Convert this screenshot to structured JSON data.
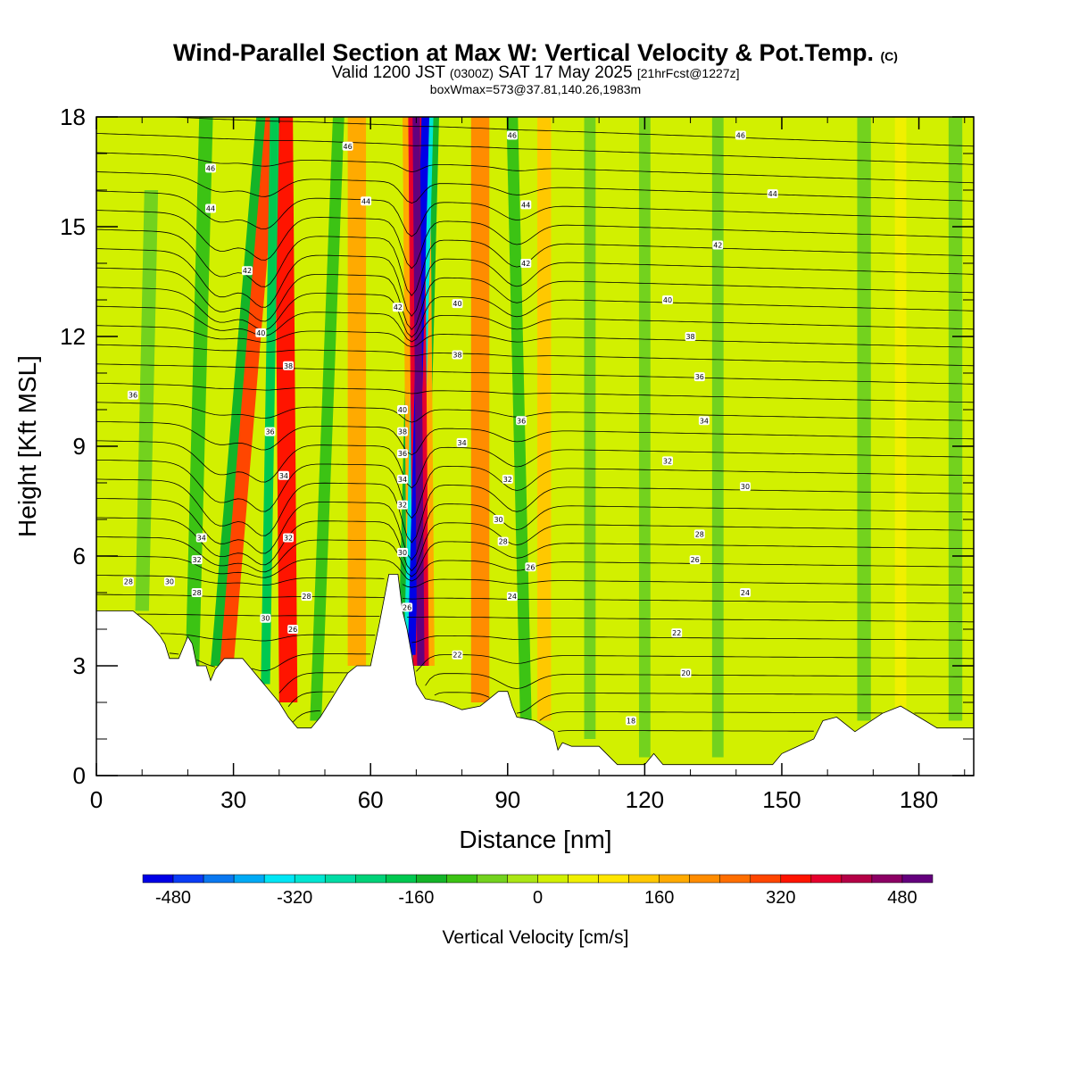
{
  "title": {
    "main": "Wind-Parallel Section at Max W: Vertical Velocity & Pot.Temp.",
    "copyright": "(C)",
    "valid_prefix": "Valid 1200 JST",
    "valid_utc": "(0300Z)",
    "valid_date": "SAT 17 May 2025",
    "forecast": "[21hrFcst@1227z]",
    "box": "boxWmax=573@37.81,140.26,1983m"
  },
  "chart_data": {
    "type": "heatmap",
    "xlabel": "Distance [nm]",
    "ylabel": "Height [Kft MSL]",
    "xlim": [
      0,
      192
    ],
    "ylim": [
      0,
      18
    ],
    "xticks": [
      0,
      30,
      60,
      90,
      120,
      150,
      180
    ],
    "yticks": [
      0,
      3,
      6,
      9,
      12,
      15,
      18
    ],
    "colorbar": {
      "label": "Vertical Velocity [cm/s]",
      "tick_values": [
        -480,
        -320,
        -160,
        0,
        160,
        320,
        480
      ],
      "tick_labels": [
        "-480",
        "-320",
        "-160",
        "0",
        "160",
        "320",
        "480"
      ],
      "bins": [
        -520,
        -480,
        -440,
        -400,
        -360,
        -320,
        -280,
        -240,
        -200,
        -160,
        -120,
        -80,
        -40,
        0,
        40,
        80,
        120,
        160,
        200,
        240,
        280,
        320,
        360,
        400,
        440,
        480,
        520
      ],
      "colors": [
        "#0000e6",
        "#0a3cf5",
        "#0a78f0",
        "#00aaf5",
        "#00e6f5",
        "#00e6d2",
        "#00dca5",
        "#00d278",
        "#00c850",
        "#14b428",
        "#3cc314",
        "#73d21e",
        "#aae614",
        "#d2f000",
        "#f0f000",
        "#ffe600",
        "#ffc800",
        "#ffaa00",
        "#ff8c00",
        "#ff6e00",
        "#ff4600",
        "#ff1400",
        "#e6002d",
        "#b40046",
        "#8c0064",
        "#64007d"
      ]
    },
    "terrain_kft": [
      [
        0,
        4.5
      ],
      [
        8,
        4.5
      ],
      [
        10,
        4.3
      ],
      [
        12,
        4.1
      ],
      [
        14,
        3.8
      ],
      [
        15,
        3.6
      ],
      [
        16,
        3.2
      ],
      [
        18,
        3.2
      ],
      [
        19,
        3.5
      ],
      [
        20,
        3.8
      ],
      [
        21,
        3.6
      ],
      [
        22,
        3.0
      ],
      [
        24,
        3.0
      ],
      [
        25,
        2.6
      ],
      [
        26,
        2.9
      ],
      [
        28,
        3.2
      ],
      [
        32,
        3.2
      ],
      [
        34,
        2.9
      ],
      [
        36,
        2.6
      ],
      [
        38,
        2.3
      ],
      [
        40,
        2.0
      ],
      [
        42,
        1.6
      ],
      [
        44,
        1.3
      ],
      [
        47,
        1.3
      ],
      [
        49,
        1.6
      ],
      [
        51,
        2.0
      ],
      [
        53,
        2.4
      ],
      [
        55,
        2.8
      ],
      [
        57,
        3.0
      ],
      [
        60,
        3.0
      ],
      [
        62,
        4.2
      ],
      [
        64,
        5.5
      ],
      [
        66,
        5.5
      ],
      [
        67,
        4.5
      ],
      [
        68,
        4.0
      ],
      [
        69,
        3.3
      ],
      [
        70,
        2.5
      ],
      [
        72,
        2.1
      ],
      [
        76,
        2.0
      ],
      [
        80,
        1.8
      ],
      [
        84,
        1.9
      ],
      [
        86,
        2.1
      ],
      [
        88,
        2.3
      ],
      [
        90,
        2.3
      ],
      [
        91,
        1.9
      ],
      [
        92,
        1.6
      ],
      [
        96,
        1.5
      ],
      [
        100,
        1.2
      ],
      [
        101,
        0.7
      ],
      [
        102,
        0.9
      ],
      [
        104,
        0.8
      ],
      [
        110,
        0.8
      ],
      [
        114,
        0.3
      ],
      [
        120,
        0.3
      ],
      [
        122,
        0.6
      ],
      [
        124,
        0.3
      ],
      [
        148,
        0.3
      ],
      [
        150,
        0.6
      ],
      [
        157,
        1.0
      ],
      [
        159,
        1.5
      ],
      [
        162,
        1.6
      ],
      [
        164,
        1.4
      ],
      [
        166,
        1.2
      ],
      [
        172,
        1.7
      ],
      [
        176,
        1.9
      ],
      [
        180,
        1.6
      ],
      [
        184,
        1.3
      ],
      [
        190,
        1.3
      ],
      [
        192,
        1.3
      ]
    ],
    "w_features": [
      {
        "x_top": 72,
        "x_bottom": 69,
        "y_bottom": 3.3,
        "y_top": 18,
        "w": -520,
        "width": 1.7
      },
      {
        "x_top": 72,
        "x_bottom": 69,
        "y_bottom": 3.0,
        "y_top": 18,
        "w": -320,
        "width": 3.5
      },
      {
        "x_top": 72,
        "x_bottom": 69,
        "y_bottom": 3.0,
        "y_top": 18,
        "w": -140,
        "width": 6
      },
      {
        "x_top": 70,
        "x_bottom": 71,
        "y_bottom": 3.0,
        "y_top": 18,
        "w": 520,
        "width": 1.6
      },
      {
        "x_top": 70,
        "x_bottom": 71,
        "y_bottom": 3.0,
        "y_top": 18,
        "w": 360,
        "width": 3.5
      },
      {
        "x_top": 70,
        "x_bottom": 71,
        "y_bottom": 3.0,
        "y_top": 18,
        "w": 180,
        "width": 6
      },
      {
        "x_top": 38,
        "x_bottom": 28,
        "y_bottom": 3.0,
        "y_top": 18,
        "w": 280,
        "width": 4
      },
      {
        "x_top": 36,
        "x_bottom": 26,
        "y_bottom": 3.0,
        "y_top": 18,
        "w": -160,
        "width": 2
      },
      {
        "x_top": 41,
        "x_bottom": 42,
        "y_bottom": 2.0,
        "y_top": 18,
        "w": 320,
        "width": 4
      },
      {
        "x_top": 39,
        "x_bottom": 37,
        "y_bottom": 2.5,
        "y_top": 18,
        "w": -180,
        "width": 2
      },
      {
        "x_top": 57,
        "x_bottom": 57,
        "y_bottom": 3.0,
        "y_top": 18,
        "w": 180,
        "width": 4
      },
      {
        "x_top": 53,
        "x_bottom": 48,
        "y_bottom": 1.5,
        "y_top": 18,
        "w": -120,
        "width": 2.5
      },
      {
        "x_top": 84,
        "x_bottom": 84,
        "y_bottom": 2.0,
        "y_top": 18,
        "w": 200,
        "width": 4
      },
      {
        "x_top": 91,
        "x_bottom": 94,
        "y_bottom": 1.5,
        "y_top": 18,
        "w": -120,
        "width": 2.5
      },
      {
        "x_top": 98,
        "x_bottom": 98,
        "y_bottom": 1.5,
        "y_top": 18,
        "w": 120,
        "width": 3
      },
      {
        "x_top": 24,
        "x_bottom": 21,
        "y_bottom": 3.0,
        "y_top": 18,
        "w": -100,
        "width": 3
      },
      {
        "x_top": 12,
        "x_bottom": 10,
        "y_bottom": 4.5,
        "y_top": 16,
        "w": -80,
        "width": 3
      },
      {
        "x_top": 108,
        "x_bottom": 108,
        "y_bottom": 1.0,
        "y_top": 18,
        "w": -60,
        "width": 2.5
      },
      {
        "x_top": 120,
        "x_bottom": 120,
        "y_bottom": 0.5,
        "y_top": 18,
        "w": -60,
        "width": 2.5
      },
      {
        "x_top": 136,
        "x_bottom": 136,
        "y_bottom": 0.5,
        "y_top": 18,
        "w": -50,
        "width": 2.5
      },
      {
        "x_top": 168,
        "x_bottom": 168,
        "y_bottom": 1.5,
        "y_top": 18,
        "w": -70,
        "width": 3
      },
      {
        "x_top": 176,
        "x_bottom": 176,
        "y_bottom": 1.5,
        "y_top": 18,
        "w": 60,
        "width": 2.5
      },
      {
        "x_top": 188,
        "x_bottom": 188,
        "y_bottom": 1.5,
        "y_top": 18,
        "w": -60,
        "width": 3
      }
    ],
    "theta_levels_shown": [
      18,
      20,
      22,
      24,
      26,
      28,
      30,
      32,
      34,
      36,
      38,
      40,
      42,
      44,
      46
    ],
    "contour_labels": [
      {
        "text": "46",
        "x": 25,
        "y": 16.6
      },
      {
        "text": "44",
        "x": 25,
        "y": 15.5
      },
      {
        "text": "42",
        "x": 33,
        "y": 13.8
      },
      {
        "text": "40",
        "x": 36,
        "y": 12.1
      },
      {
        "text": "38",
        "x": 42,
        "y": 11.2
      },
      {
        "text": "36",
        "x": 8,
        "y": 10.4
      },
      {
        "text": "36",
        "x": 38,
        "y": 9.4
      },
      {
        "text": "34",
        "x": 41,
        "y": 8.2
      },
      {
        "text": "34",
        "x": 23,
        "y": 6.5
      },
      {
        "text": "32",
        "x": 22,
        "y": 5.9
      },
      {
        "text": "30",
        "x": 16,
        "y": 5.3
      },
      {
        "text": "28",
        "x": 7,
        "y": 5.3
      },
      {
        "text": "28",
        "x": 22,
        "y": 5.0
      },
      {
        "text": "32",
        "x": 42,
        "y": 6.5
      },
      {
        "text": "28",
        "x": 46,
        "y": 4.9
      },
      {
        "text": "30",
        "x": 37,
        "y": 4.3
      },
      {
        "text": "26",
        "x": 43,
        "y": 4.0
      },
      {
        "text": "46",
        "x": 55,
        "y": 17.2
      },
      {
        "text": "44",
        "x": 59,
        "y": 15.7
      },
      {
        "text": "42",
        "x": 66,
        "y": 12.8
      },
      {
        "text": "40",
        "x": 67,
        "y": 10.0
      },
      {
        "text": "38",
        "x": 67,
        "y": 9.4
      },
      {
        "text": "36",
        "x": 67,
        "y": 8.8
      },
      {
        "text": "34",
        "x": 67,
        "y": 8.1
      },
      {
        "text": "32",
        "x": 67,
        "y": 7.4
      },
      {
        "text": "30",
        "x": 67,
        "y": 6.1
      },
      {
        "text": "26",
        "x": 68,
        "y": 4.6
      },
      {
        "text": "40",
        "x": 79,
        "y": 12.9
      },
      {
        "text": "38",
        "x": 79,
        "y": 11.5
      },
      {
        "text": "34",
        "x": 80,
        "y": 9.1
      },
      {
        "text": "46",
        "x": 91,
        "y": 17.5
      },
      {
        "text": "44",
        "x": 94,
        "y": 15.6
      },
      {
        "text": "42",
        "x": 94,
        "y": 14.0
      },
      {
        "text": "36",
        "x": 93,
        "y": 9.7
      },
      {
        "text": "32",
        "x": 90,
        "y": 8.1
      },
      {
        "text": "30",
        "x": 88,
        "y": 7.0
      },
      {
        "text": "28",
        "x": 89,
        "y": 6.4
      },
      {
        "text": "26",
        "x": 95,
        "y": 5.7
      },
      {
        "text": "24",
        "x": 91,
        "y": 4.9
      },
      {
        "text": "22",
        "x": 79,
        "y": 3.3
      },
      {
        "text": "46",
        "x": 141,
        "y": 17.5
      },
      {
        "text": "44",
        "x": 148,
        "y": 15.9
      },
      {
        "text": "42",
        "x": 136,
        "y": 14.5
      },
      {
        "text": "40",
        "x": 125,
        "y": 13.0
      },
      {
        "text": "38",
        "x": 130,
        "y": 12.0
      },
      {
        "text": "36",
        "x": 132,
        "y": 10.9
      },
      {
        "text": "34",
        "x": 133,
        "y": 9.7
      },
      {
        "text": "32",
        "x": 125,
        "y": 8.6
      },
      {
        "text": "30",
        "x": 142,
        "y": 7.9
      },
      {
        "text": "28",
        "x": 132,
        "y": 6.6
      },
      {
        "text": "26",
        "x": 131,
        "y": 5.9
      },
      {
        "text": "24",
        "x": 142,
        "y": 5.0
      },
      {
        "text": "22",
        "x": 127,
        "y": 3.9
      },
      {
        "text": "20",
        "x": 129,
        "y": 2.8
      },
      {
        "text": "18",
        "x": 117,
        "y": 1.5
      }
    ]
  }
}
